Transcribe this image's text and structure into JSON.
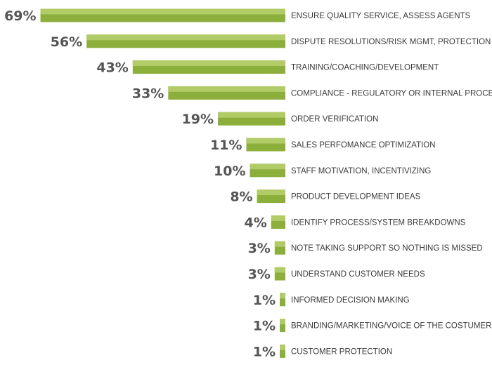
{
  "chart_data": {
    "type": "bar",
    "orientation": "horizontal",
    "direction": "right-aligned, bars extend leftward",
    "title": "",
    "xlabel": "",
    "ylabel": "",
    "xlim": [
      0,
      69
    ],
    "bar_color": "#8cae3b",
    "bar_highlight_color": "#b1cb67",
    "label_color": "#555555",
    "categories": [
      "ENSURE QUALITY SERVICE, ASSESS AGENTS",
      "DISPUTE RESOLUTIONS/RISK MGMT, PROTECTION",
      "TRAINING/COACHING/DEVELOPMENT",
      "COMPLIANCE - REGULATORY OR INTERNAL PROCESS",
      "ORDER VERIFICATION",
      "SALES PERFOMANCE OPTIMIZATION",
      "STAFF MOTIVATION, INCENTIVIZING",
      "PRODUCT DEVELOPMENT IDEAS",
      "IDENTIFY PROCESS/SYSTEM BREAKDOWNS",
      "NOTE TAKING SUPPORT SO NOTHING IS MISSED",
      "UNDERSTAND CUSTOMER NEEDS",
      "INFORMED DECISION MAKING",
      "BRANDING/MARKETING/VOICE OF THE COSTUMER (VOC)",
      "CUSTOMER PROTECTION"
    ],
    "values": [
      69,
      56,
      43,
      33,
      19,
      11,
      10,
      8,
      4,
      3,
      3,
      1,
      1,
      1
    ],
    "value_labels": [
      "69%",
      "56%",
      "43%",
      "33%",
      "19%",
      "11%",
      "10%",
      "8%",
      "4%",
      "3%",
      "3%",
      "1%",
      "1%",
      "1%"
    ]
  }
}
